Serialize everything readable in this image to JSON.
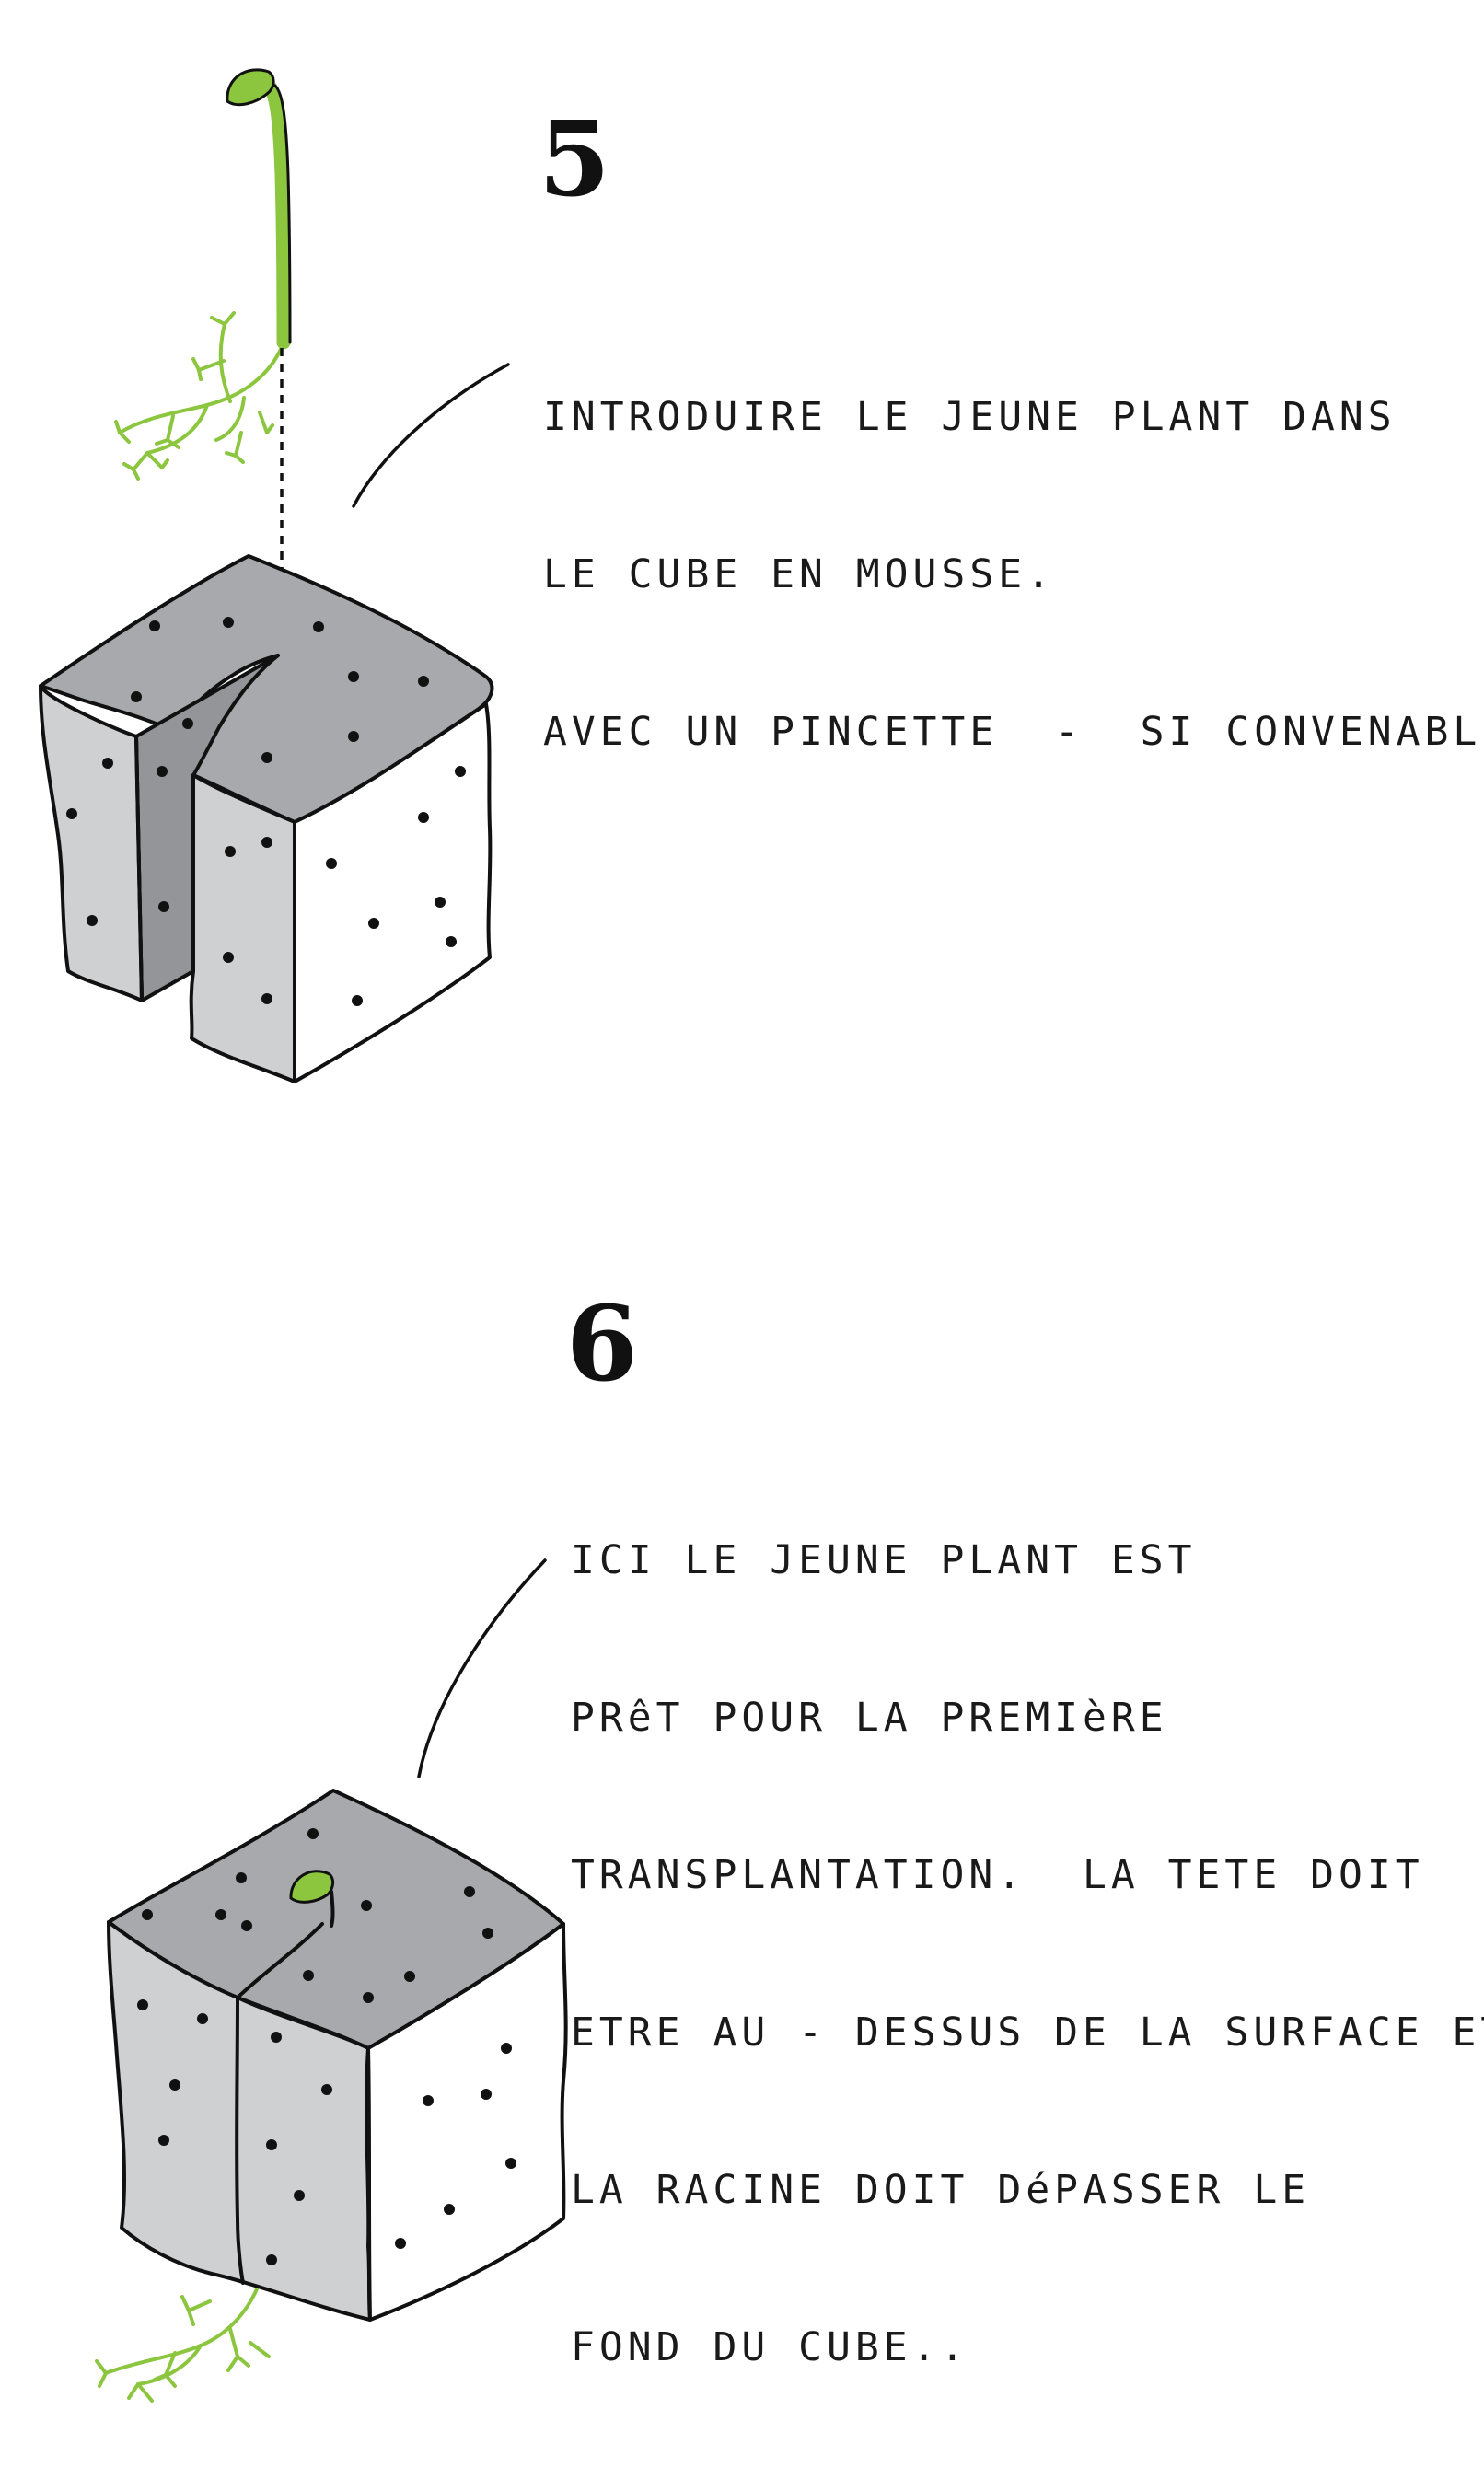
{
  "steps": [
    {
      "number": "5",
      "lines": [
        "INTRODUIRE LE JEUNE PLANT DANS",
        "LE CUBE EN MOUSSE.",
        "AVEC UN PINCETTE  -  SI CONVENABLE."
      ]
    },
    {
      "number": "6",
      "lines": [
        "ICI LE JEUNE PLANT EST",
        "PRêT POUR LA PREMIèRE",
        "TRANSPLANTATION.  LA TETE DOIT",
        "ETRE AU - DESSUS DE LA SURFACE ET",
        "LA RACINE DOIT DéPASSER LE",
        "FOND DU CUBE.."
      ]
    }
  ],
  "colors": {
    "plant_green": "#8cc63f",
    "cube_top": "#a7a9ac",
    "cube_left": "#cfd0d2",
    "cube_right": "#ffffff",
    "cube_slit": "#939598",
    "ink": "#111111"
  },
  "icons": [
    "seedling-icon",
    "sprouting-seed-icon",
    "root-icon"
  ]
}
